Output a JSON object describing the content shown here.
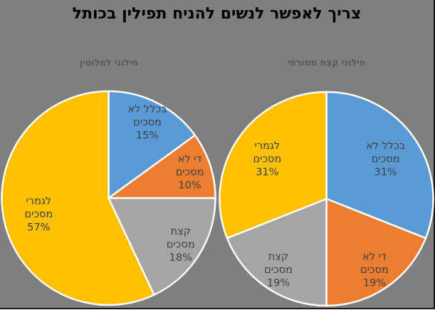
{
  "title": "צריך לאפשר לנשים להניח תפילין בכותל",
  "colors": {
    "background": "#7F7F7F",
    "frame_border": "#1a1a1a",
    "title_text": "#000000",
    "subtitle_text": "#595959",
    "label_text": "#404040",
    "slice_stroke": "#ffffff",
    "series_blue": "#5B9BD5",
    "series_orange": "#ED7D31",
    "series_gray": "#A5A5A5",
    "series_yellow": "#FFC000"
  },
  "chart_data": [
    {
      "type": "pie",
      "title": "חילוני לחלוטין",
      "legend_position": "none",
      "labels_position": "inside",
      "start_angle_deg": 0,
      "direction": "clockwise",
      "slices": [
        {
          "label": "בכלל לא מסכים",
          "value": 15,
          "display_lines": [
            "בכלל לא",
            "מסכים",
            "15%"
          ],
          "color": "#5B9BD5"
        },
        {
          "label": "די לא מסכים",
          "value": 10,
          "display_lines": [
            "די לא",
            "מסכים",
            "10%"
          ],
          "color": "#ED7D31"
        },
        {
          "label": "קצת מסכים",
          "value": 18,
          "display_lines": [
            "קצת",
            "מסכים",
            "18%"
          ],
          "color": "#A5A5A5"
        },
        {
          "label": "לגמרי מסכים",
          "value": 57,
          "display_lines": [
            "לגמרי",
            "מסכים",
            "57%"
          ],
          "color": "#FFC000"
        }
      ]
    },
    {
      "type": "pie",
      "title": "חילוני קצת מסורתי",
      "legend_position": "none",
      "labels_position": "inside",
      "start_angle_deg": 0,
      "direction": "clockwise",
      "slices": [
        {
          "label": "בכלל לא מסכים",
          "value": 31,
          "display_lines": [
            "בכלל לא",
            "מסכים",
            "31%"
          ],
          "color": "#5B9BD5"
        },
        {
          "label": "די לא מסכים",
          "value": 19,
          "display_lines": [
            "די לא",
            "מסכים",
            "19%"
          ],
          "color": "#ED7D31"
        },
        {
          "label": "קצת מסכים",
          "value": 19,
          "display_lines": [
            "קצת",
            "מסכים",
            "19%"
          ],
          "color": "#A5A5A5"
        },
        {
          "label": "לגמרי מסכים",
          "value": 31,
          "display_lines": [
            "לגמרי",
            "מסכים",
            "31%"
          ],
          "color": "#FFC000"
        }
      ]
    }
  ]
}
